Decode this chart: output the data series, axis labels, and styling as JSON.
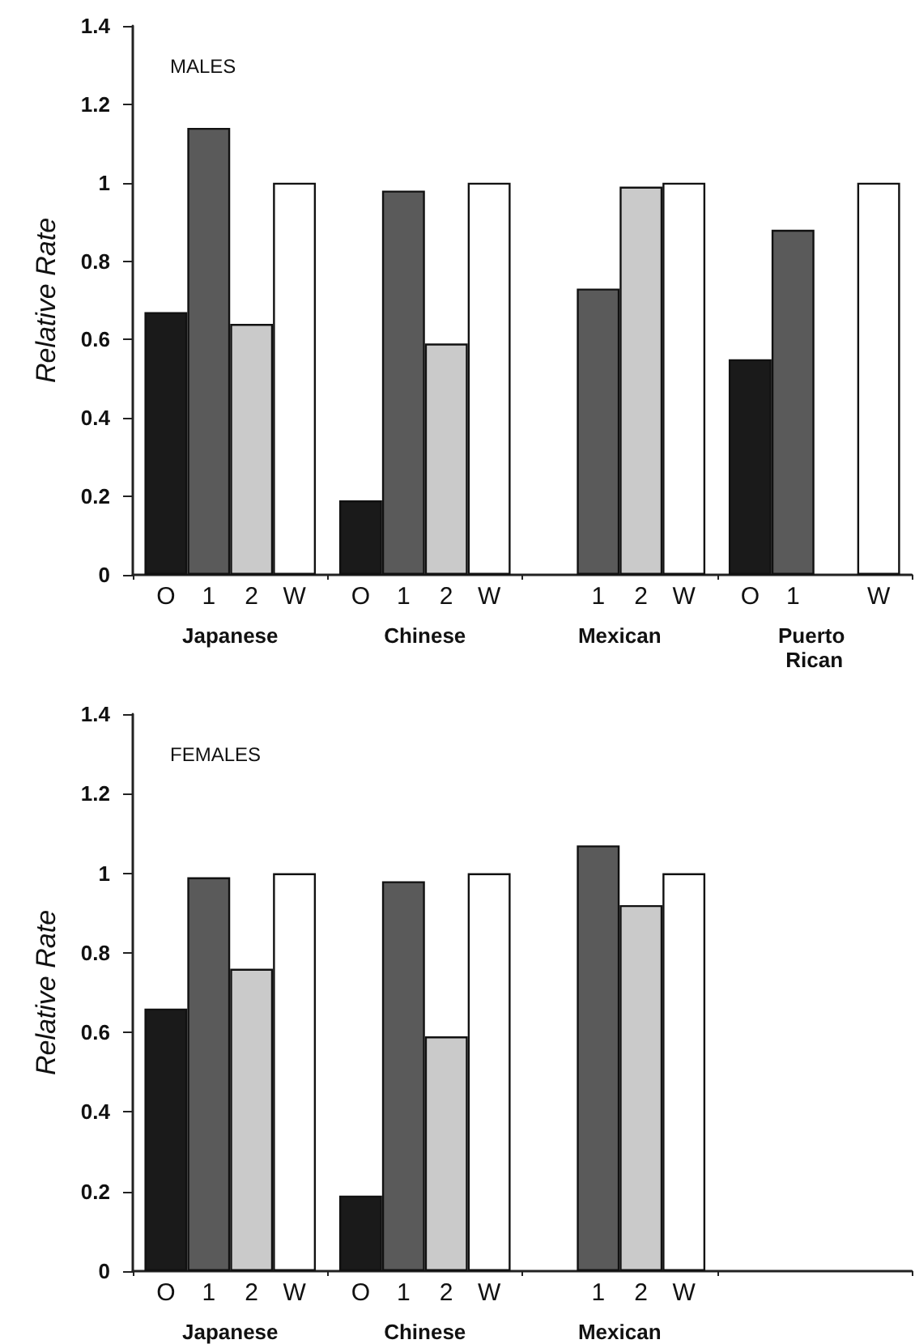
{
  "chart_data": [
    {
      "type": "bar",
      "title": "MALES",
      "ylabel": "Relative Rate",
      "categories": [
        "Japanese",
        "Chinese",
        "Mexican",
        "Puerto Rican"
      ],
      "ylim": [
        0,
        1.4
      ],
      "yticks": [
        0,
        0.2,
        0.4,
        0.6,
        0.8,
        1,
        1.2,
        1.4
      ],
      "series": [
        {
          "name": "O",
          "color": "#1a1a1a",
          "values": [
            0.67,
            0.19,
            null,
            0.55
          ]
        },
        {
          "name": "1",
          "color": "#5a5a5a",
          "values": [
            1.14,
            0.98,
            0.73,
            0.88
          ]
        },
        {
          "name": "2",
          "color": "#cacaca",
          "values": [
            0.64,
            0.59,
            0.99,
            null
          ]
        },
        {
          "name": "W",
          "color": "#ffffff",
          "values": [
            1.0,
            1.0,
            1.0,
            1.0
          ]
        }
      ]
    },
    {
      "type": "bar",
      "title": "FEMALES",
      "ylabel": "Relative Rate",
      "categories": [
        "Japanese",
        "Chinese",
        "Mexican",
        null
      ],
      "ylim": [
        0,
        1.4
      ],
      "yticks": [
        0,
        0.2,
        0.4,
        0.6,
        0.8,
        1,
        1.2,
        1.4
      ],
      "series": [
        {
          "name": "O",
          "color": "#1a1a1a",
          "values": [
            0.66,
            0.19,
            null,
            null
          ]
        },
        {
          "name": "1",
          "color": "#5a5a5a",
          "values": [
            0.99,
            0.98,
            1.07,
            null
          ]
        },
        {
          "name": "2",
          "color": "#cacaca",
          "values": [
            0.76,
            0.59,
            0.92,
            null
          ]
        },
        {
          "name": "W",
          "color": "#ffffff",
          "values": [
            1.0,
            1.0,
            1.0,
            null
          ]
        }
      ]
    }
  ]
}
